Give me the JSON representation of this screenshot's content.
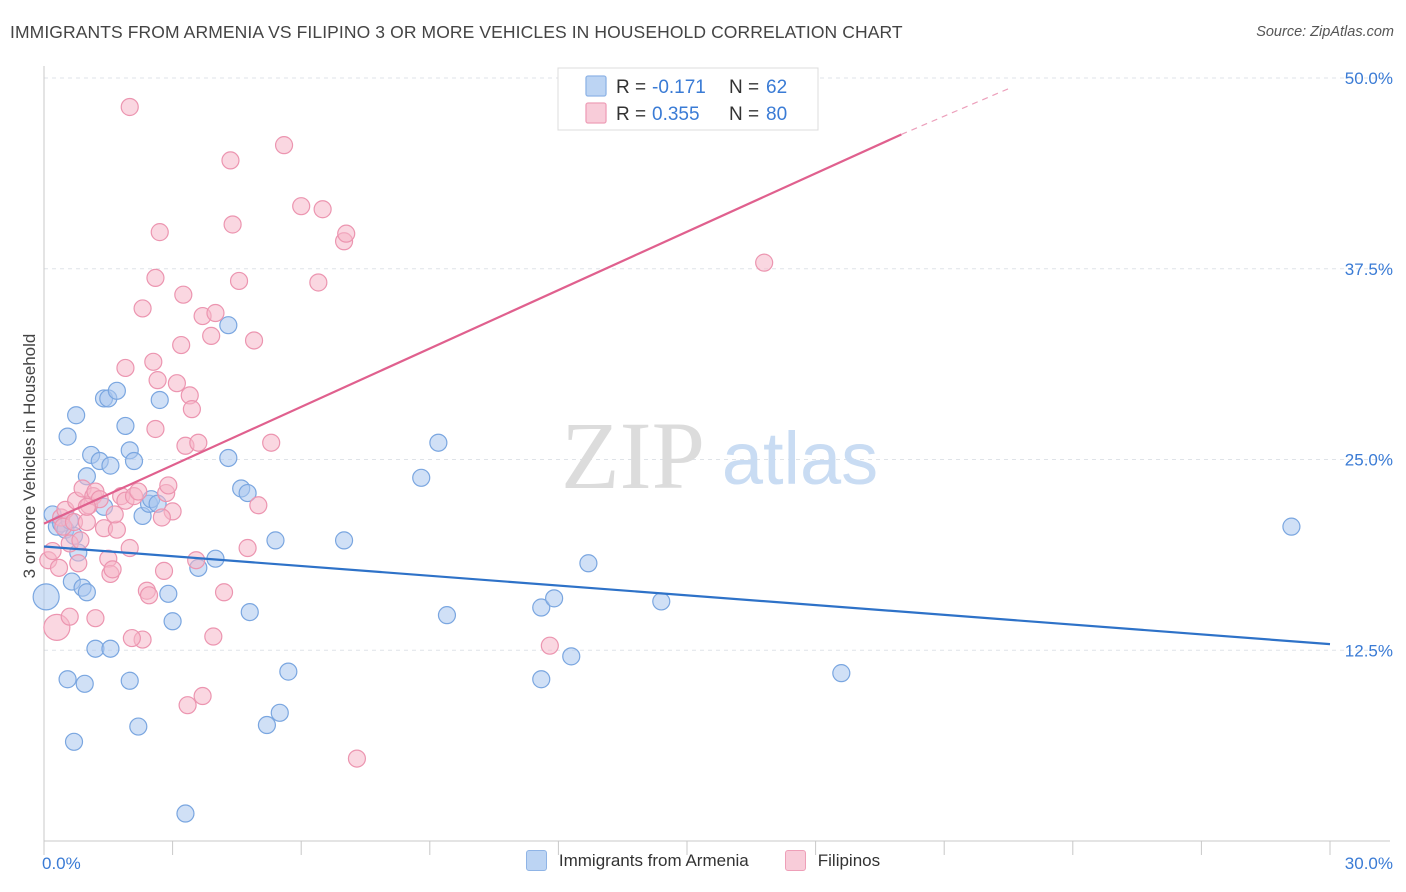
{
  "title": "IMMIGRANTS FROM ARMENIA VS FILIPINO 3 OR MORE VEHICLES IN HOUSEHOLD CORRELATION CHART",
  "source": "Source: ZipAtlas.com",
  "watermark": {
    "zip": "ZIP",
    "atlas": "atlas"
  },
  "colors": {
    "blue_fill": "#a9c7ef",
    "blue_stroke": "#7aa6e0",
    "blue_line": "#2e72c8",
    "pink_fill": "#f5b7c9",
    "pink_stroke": "#ec95b0",
    "pink_line": "#e0608e",
    "axis_text": "#3a7bd5",
    "grid": "#dfe3e8"
  },
  "legend": {
    "rows": [
      {
        "r_label": "R =",
        "r_value": "-0.171",
        "n_label": "N =",
        "n_value": "62"
      },
      {
        "r_label": "R =",
        "r_value": "0.355",
        "n_label": "N =",
        "n_value": "80"
      }
    ]
  },
  "chart_data": {
    "type": "scatter",
    "title": "IMMIGRANTS FROM ARMENIA VS FILIPINO 3 OR MORE VEHICLES IN HOUSEHOLD CORRELATION CHART",
    "xlabel": "",
    "ylabel": "3 or more Vehicles in Household",
    "xlim": [
      0,
      30
    ],
    "ylim": [
      0,
      50
    ],
    "x_tick_labels": [
      "0.0%",
      "30.0%"
    ],
    "y_tick_values": [
      12.5,
      25.0,
      37.5,
      50.0
    ],
    "y_tick_labels": [
      "12.5%",
      "25.0%",
      "37.5%",
      "50.0%"
    ],
    "grid": true,
    "legend_position": "top-center",
    "series": [
      {
        "name": "Immigrants from Armenia",
        "color": "#a9c7ef",
        "r": -0.171,
        "n": 62,
        "trend": {
          "x0": 0,
          "y0": 19.3,
          "x1": 30,
          "y1": 12.9
        },
        "points": [
          [
            0.05,
            16.0
          ],
          [
            0.2,
            21.4
          ],
          [
            0.3,
            20.6
          ],
          [
            0.4,
            20.8
          ],
          [
            0.5,
            20.4
          ],
          [
            0.6,
            21.0
          ],
          [
            0.7,
            20.0
          ],
          [
            0.8,
            18.9
          ],
          [
            0.55,
            26.5
          ],
          [
            0.75,
            27.9
          ],
          [
            0.65,
            17.0
          ],
          [
            0.9,
            16.6
          ],
          [
            1.0,
            16.3
          ],
          [
            1.1,
            25.3
          ],
          [
            1.3,
            24.9
          ],
          [
            1.4,
            21.9
          ],
          [
            1.55,
            24.6
          ],
          [
            1.0,
            23.9
          ],
          [
            1.4,
            29.0
          ],
          [
            1.5,
            29.0
          ],
          [
            1.7,
            29.5
          ],
          [
            1.9,
            27.2
          ],
          [
            2.0,
            25.6
          ],
          [
            2.1,
            24.9
          ],
          [
            2.3,
            21.3
          ],
          [
            2.45,
            22.1
          ],
          [
            2.5,
            22.4
          ],
          [
            2.65,
            22.1
          ],
          [
            2.7,
            28.9
          ],
          [
            2.9,
            16.2
          ],
          [
            3.0,
            14.4
          ],
          [
            1.2,
            12.6
          ],
          [
            1.55,
            12.6
          ],
          [
            0.55,
            10.6
          ],
          [
            0.95,
            10.3
          ],
          [
            2.0,
            10.5
          ],
          [
            2.2,
            7.5
          ],
          [
            0.7,
            6.5
          ],
          [
            3.3,
            1.8
          ],
          [
            3.6,
            17.9
          ],
          [
            4.0,
            18.5
          ],
          [
            4.3,
            25.1
          ],
          [
            4.6,
            23.1
          ],
          [
            4.75,
            22.8
          ],
          [
            4.8,
            15.0
          ],
          [
            5.2,
            7.6
          ],
          [
            5.5,
            8.4
          ],
          [
            5.7,
            11.1
          ],
          [
            5.4,
            19.7
          ],
          [
            4.3,
            33.8
          ],
          [
            7.0,
            19.7
          ],
          [
            8.8,
            23.8
          ],
          [
            9.2,
            26.1
          ],
          [
            9.4,
            14.8
          ],
          [
            11.6,
            15.3
          ],
          [
            11.9,
            15.9
          ],
          [
            12.3,
            12.1
          ],
          [
            12.7,
            18.2
          ],
          [
            14.4,
            15.7
          ],
          [
            11.6,
            10.6
          ],
          [
            18.6,
            11.0
          ],
          [
            29.1,
            20.6
          ]
        ]
      },
      {
        "name": "Filipinos",
        "color": "#f5b7c9",
        "r": 0.355,
        "n": 80,
        "trend": {
          "x0": 0,
          "y0": 20.8,
          "x1": 20.0,
          "y1": 46.3,
          "dash_x1": 22.5,
          "dash_y1": 49.3
        },
        "points": [
          [
            0.1,
            18.4
          ],
          [
            0.2,
            19.0
          ],
          [
            0.3,
            14.0
          ],
          [
            0.4,
            21.2
          ],
          [
            0.45,
            20.6
          ],
          [
            0.5,
            21.7
          ],
          [
            0.6,
            19.5
          ],
          [
            0.7,
            20.9
          ],
          [
            0.75,
            22.3
          ],
          [
            0.85,
            19.7
          ],
          [
            0.6,
            14.7
          ],
          [
            0.9,
            23.1
          ],
          [
            1.0,
            20.9
          ],
          [
            1.05,
            22.0
          ],
          [
            1.15,
            22.6
          ],
          [
            1.2,
            22.9
          ],
          [
            1.3,
            22.4
          ],
          [
            1.4,
            20.5
          ],
          [
            1.5,
            18.5
          ],
          [
            1.55,
            17.5
          ],
          [
            1.6,
            17.8
          ],
          [
            1.7,
            20.4
          ],
          [
            1.8,
            22.6
          ],
          [
            1.9,
            22.3
          ],
          [
            2.0,
            19.2
          ],
          [
            2.1,
            22.6
          ],
          [
            1.9,
            31.0
          ],
          [
            2.2,
            22.9
          ],
          [
            2.3,
            13.2
          ],
          [
            2.3,
            34.9
          ],
          [
            2.4,
            16.4
          ],
          [
            2.45,
            16.1
          ],
          [
            2.55,
            31.4
          ],
          [
            2.6,
            36.9
          ],
          [
            2.65,
            30.2
          ],
          [
            2.6,
            27.0
          ],
          [
            2.7,
            39.9
          ],
          [
            2.8,
            17.7
          ],
          [
            2.85,
            22.8
          ],
          [
            2.9,
            23.3
          ],
          [
            3.0,
            21.6
          ],
          [
            3.1,
            30.0
          ],
          [
            3.2,
            32.5
          ],
          [
            3.25,
            35.8
          ],
          [
            3.3,
            25.9
          ],
          [
            3.35,
            8.9
          ],
          [
            3.4,
            29.2
          ],
          [
            3.45,
            28.3
          ],
          [
            3.55,
            18.4
          ],
          [
            3.6,
            26.1
          ],
          [
            3.7,
            9.5
          ],
          [
            3.7,
            34.4
          ],
          [
            3.9,
            33.1
          ],
          [
            4.0,
            34.6
          ],
          [
            4.2,
            16.3
          ],
          [
            4.35,
            44.6
          ],
          [
            4.4,
            40.4
          ],
          [
            4.55,
            36.7
          ],
          [
            4.75,
            19.2
          ],
          [
            4.9,
            32.8
          ],
          [
            5.0,
            22.0
          ],
          [
            5.3,
            26.1
          ],
          [
            5.6,
            45.6
          ],
          [
            6.0,
            41.6
          ],
          [
            6.4,
            36.6
          ],
          [
            6.5,
            41.4
          ],
          [
            7.0,
            39.3
          ],
          [
            7.05,
            39.8
          ],
          [
            7.3,
            5.4
          ],
          [
            11.8,
            12.8
          ],
          [
            16.8,
            37.9
          ],
          [
            2.0,
            48.1
          ],
          [
            1.2,
            14.6
          ],
          [
            0.35,
            17.9
          ],
          [
            1.0,
            21.9
          ],
          [
            1.65,
            21.4
          ],
          [
            2.05,
            13.3
          ],
          [
            0.8,
            18.2
          ],
          [
            2.75,
            21.2
          ],
          [
            3.95,
            13.4
          ]
        ]
      }
    ]
  }
}
